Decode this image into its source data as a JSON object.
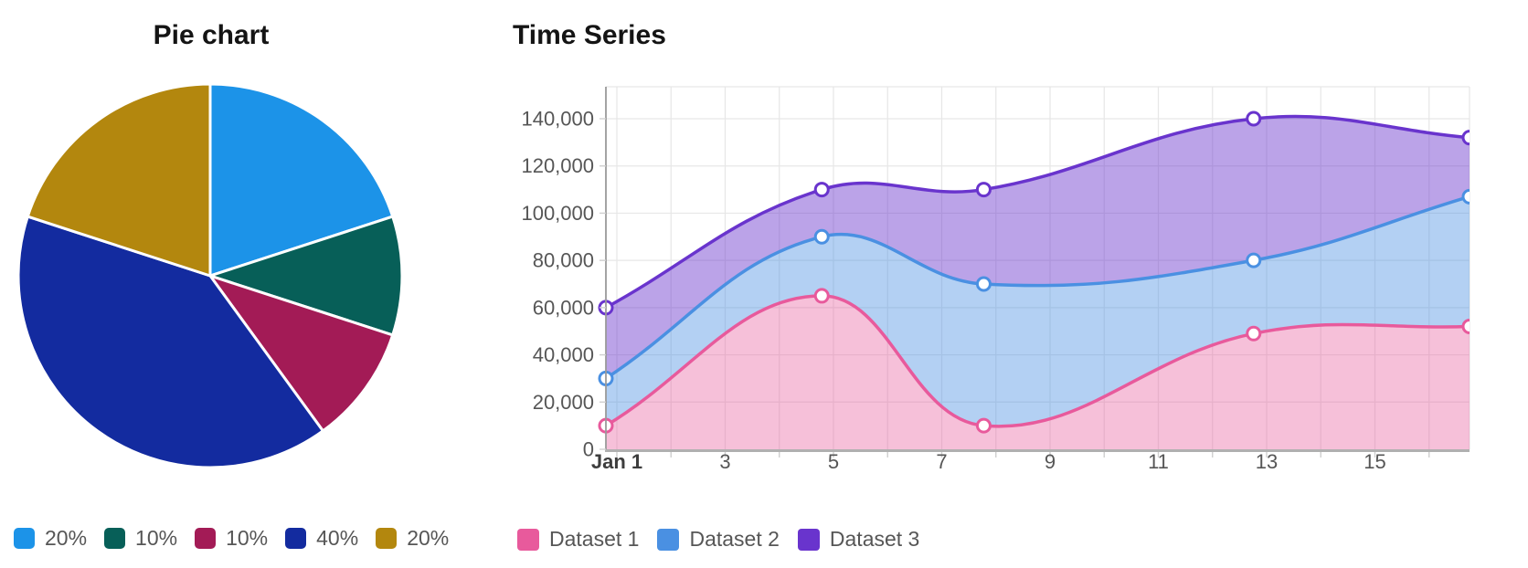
{
  "pie_panel": {
    "title": "Pie chart"
  },
  "ts_panel": {
    "title": "Time Series"
  },
  "chart_data": [
    {
      "type": "pie",
      "title": "Pie chart",
      "labels": [
        "20%",
        "10%",
        "10%",
        "40%",
        "20%"
      ],
      "values": [
        20,
        10,
        10,
        40,
        20
      ],
      "colors": [
        "#1c93e8",
        "#075f58",
        "#a31b56",
        "#132b9f",
        "#b3870e"
      ],
      "start_angle_deg": 0,
      "direction": "clockwise from top",
      "slice_border_color": "#ffffff",
      "legend_position": "bottom",
      "legend_text_color": "#565656"
    },
    {
      "type": "area",
      "title": "Time Series",
      "x_unit": "day of January",
      "x": [
        1,
        5,
        8,
        13,
        17
      ],
      "x_range": [
        1,
        17
      ],
      "x_ticks": [
        {
          "day": 1,
          "label": "Jan 1",
          "bold": true
        },
        {
          "day": 3,
          "label": "3"
        },
        {
          "day": 5,
          "label": "5"
        },
        {
          "day": 7,
          "label": "7"
        },
        {
          "day": 9,
          "label": "9"
        },
        {
          "day": 11,
          "label": "11"
        },
        {
          "day": 13,
          "label": "13"
        },
        {
          "day": 15,
          "label": "15"
        }
      ],
      "ylim": [
        0,
        153500
      ],
      "y_ticks": [
        {
          "value": 0,
          "label": "0"
        },
        {
          "value": 20000,
          "label": "20,000"
        },
        {
          "value": 40000,
          "label": "40,000"
        },
        {
          "value": 60000,
          "label": "60,000"
        },
        {
          "value": 80000,
          "label": "80,000"
        },
        {
          "value": 100000,
          "label": "100,000"
        },
        {
          "value": 120000,
          "label": "120,000"
        },
        {
          "value": 140000,
          "label": "140,000"
        }
      ],
      "grid": true,
      "smoothing": "bezier, tension 0.4",
      "markers": "white-filled circles on data points",
      "fill_mode": "each series fills down to the series below (Dataset 1 fills to zero)",
      "legend_position": "bottom",
      "legend_text_color": "#565656",
      "series": [
        {
          "name": "Dataset 1",
          "color": "#e85a9c",
          "fill": "rgba(232,90,156,0.38)",
          "values": [
            10000,
            65000,
            10000,
            49000,
            52000
          ]
        },
        {
          "name": "Dataset 2",
          "color": "#4a90e2",
          "fill": "rgba(74,144,226,0.42)",
          "values": [
            30000,
            90000,
            70000,
            80000,
            107000
          ]
        },
        {
          "name": "Dataset 3",
          "color": "#6934cd",
          "fill": "rgba(105,52,205,0.45)",
          "values": [
            60000,
            110000,
            110000,
            140000,
            132000
          ]
        }
      ]
    }
  ]
}
